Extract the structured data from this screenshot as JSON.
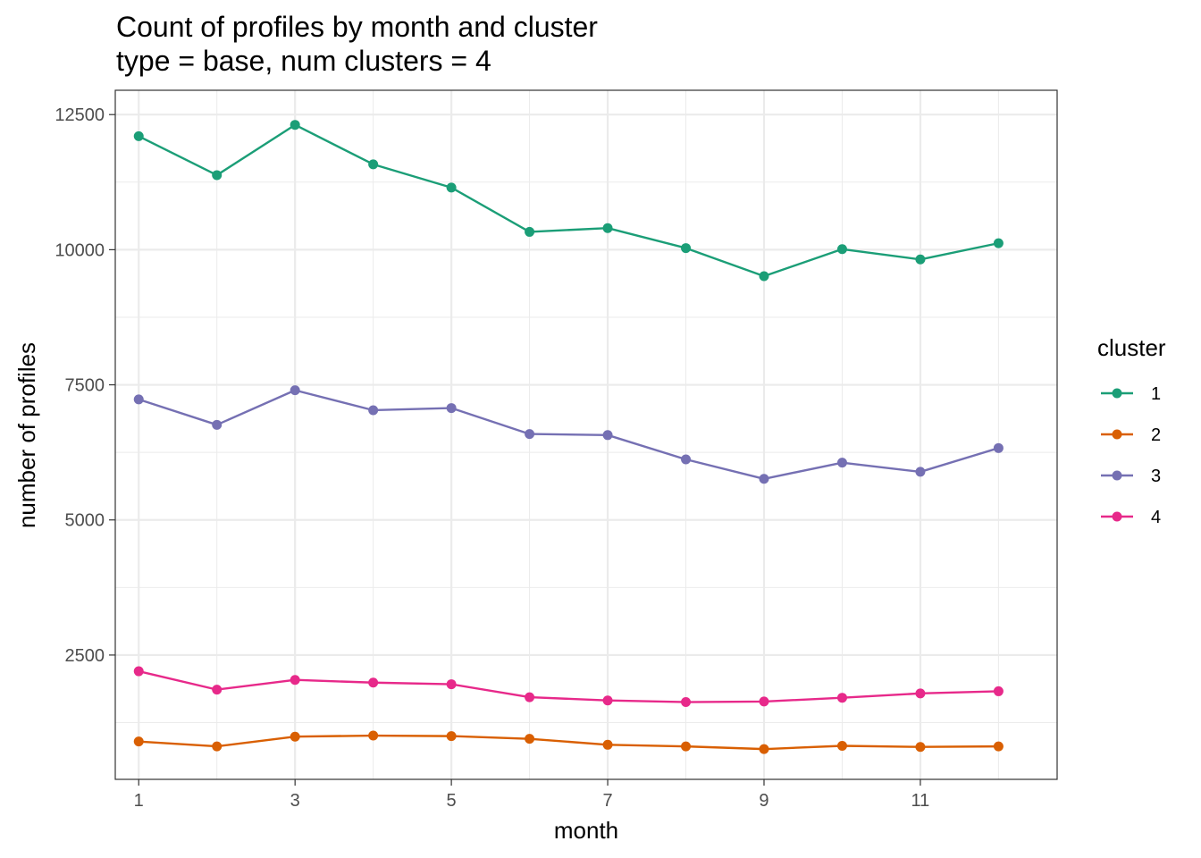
{
  "chart_data": {
    "type": "line",
    "title": "Count of profiles by month and cluster",
    "subtitle": "type = base, num clusters = 4",
    "xlabel": "month",
    "ylabel": "number of profiles",
    "x": [
      1,
      2,
      3,
      4,
      5,
      6,
      7,
      8,
      9,
      10,
      11,
      12
    ],
    "xlim": [
      0.7,
      12.75
    ],
    "ylim": [
      200,
      12950
    ],
    "x_ticks": [
      1,
      3,
      5,
      7,
      9,
      11
    ],
    "y_ticks": [
      2500,
      5000,
      7500,
      10000,
      12500
    ],
    "grid": true,
    "legend": {
      "title": "cluster",
      "position": "right"
    },
    "series": [
      {
        "name": "1",
        "color": "#1b9e77",
        "values": [
          12100,
          11380,
          12310,
          11580,
          11150,
          10330,
          10400,
          10030,
          9510,
          10010,
          9820,
          10120
        ]
      },
      {
        "name": "2",
        "color": "#d95f02",
        "values": [
          900,
          810,
          990,
          1010,
          1000,
          950,
          840,
          810,
          760,
          820,
          800,
          810
        ]
      },
      {
        "name": "3",
        "color": "#7570b3",
        "values": [
          7230,
          6760,
          7400,
          7030,
          7070,
          6590,
          6570,
          6120,
          5760,
          6060,
          5890,
          6330
        ]
      },
      {
        "name": "4",
        "color": "#e7298a",
        "values": [
          2200,
          1860,
          2040,
          1990,
          1960,
          1720,
          1660,
          1630,
          1640,
          1710,
          1790,
          1830
        ]
      }
    ]
  }
}
